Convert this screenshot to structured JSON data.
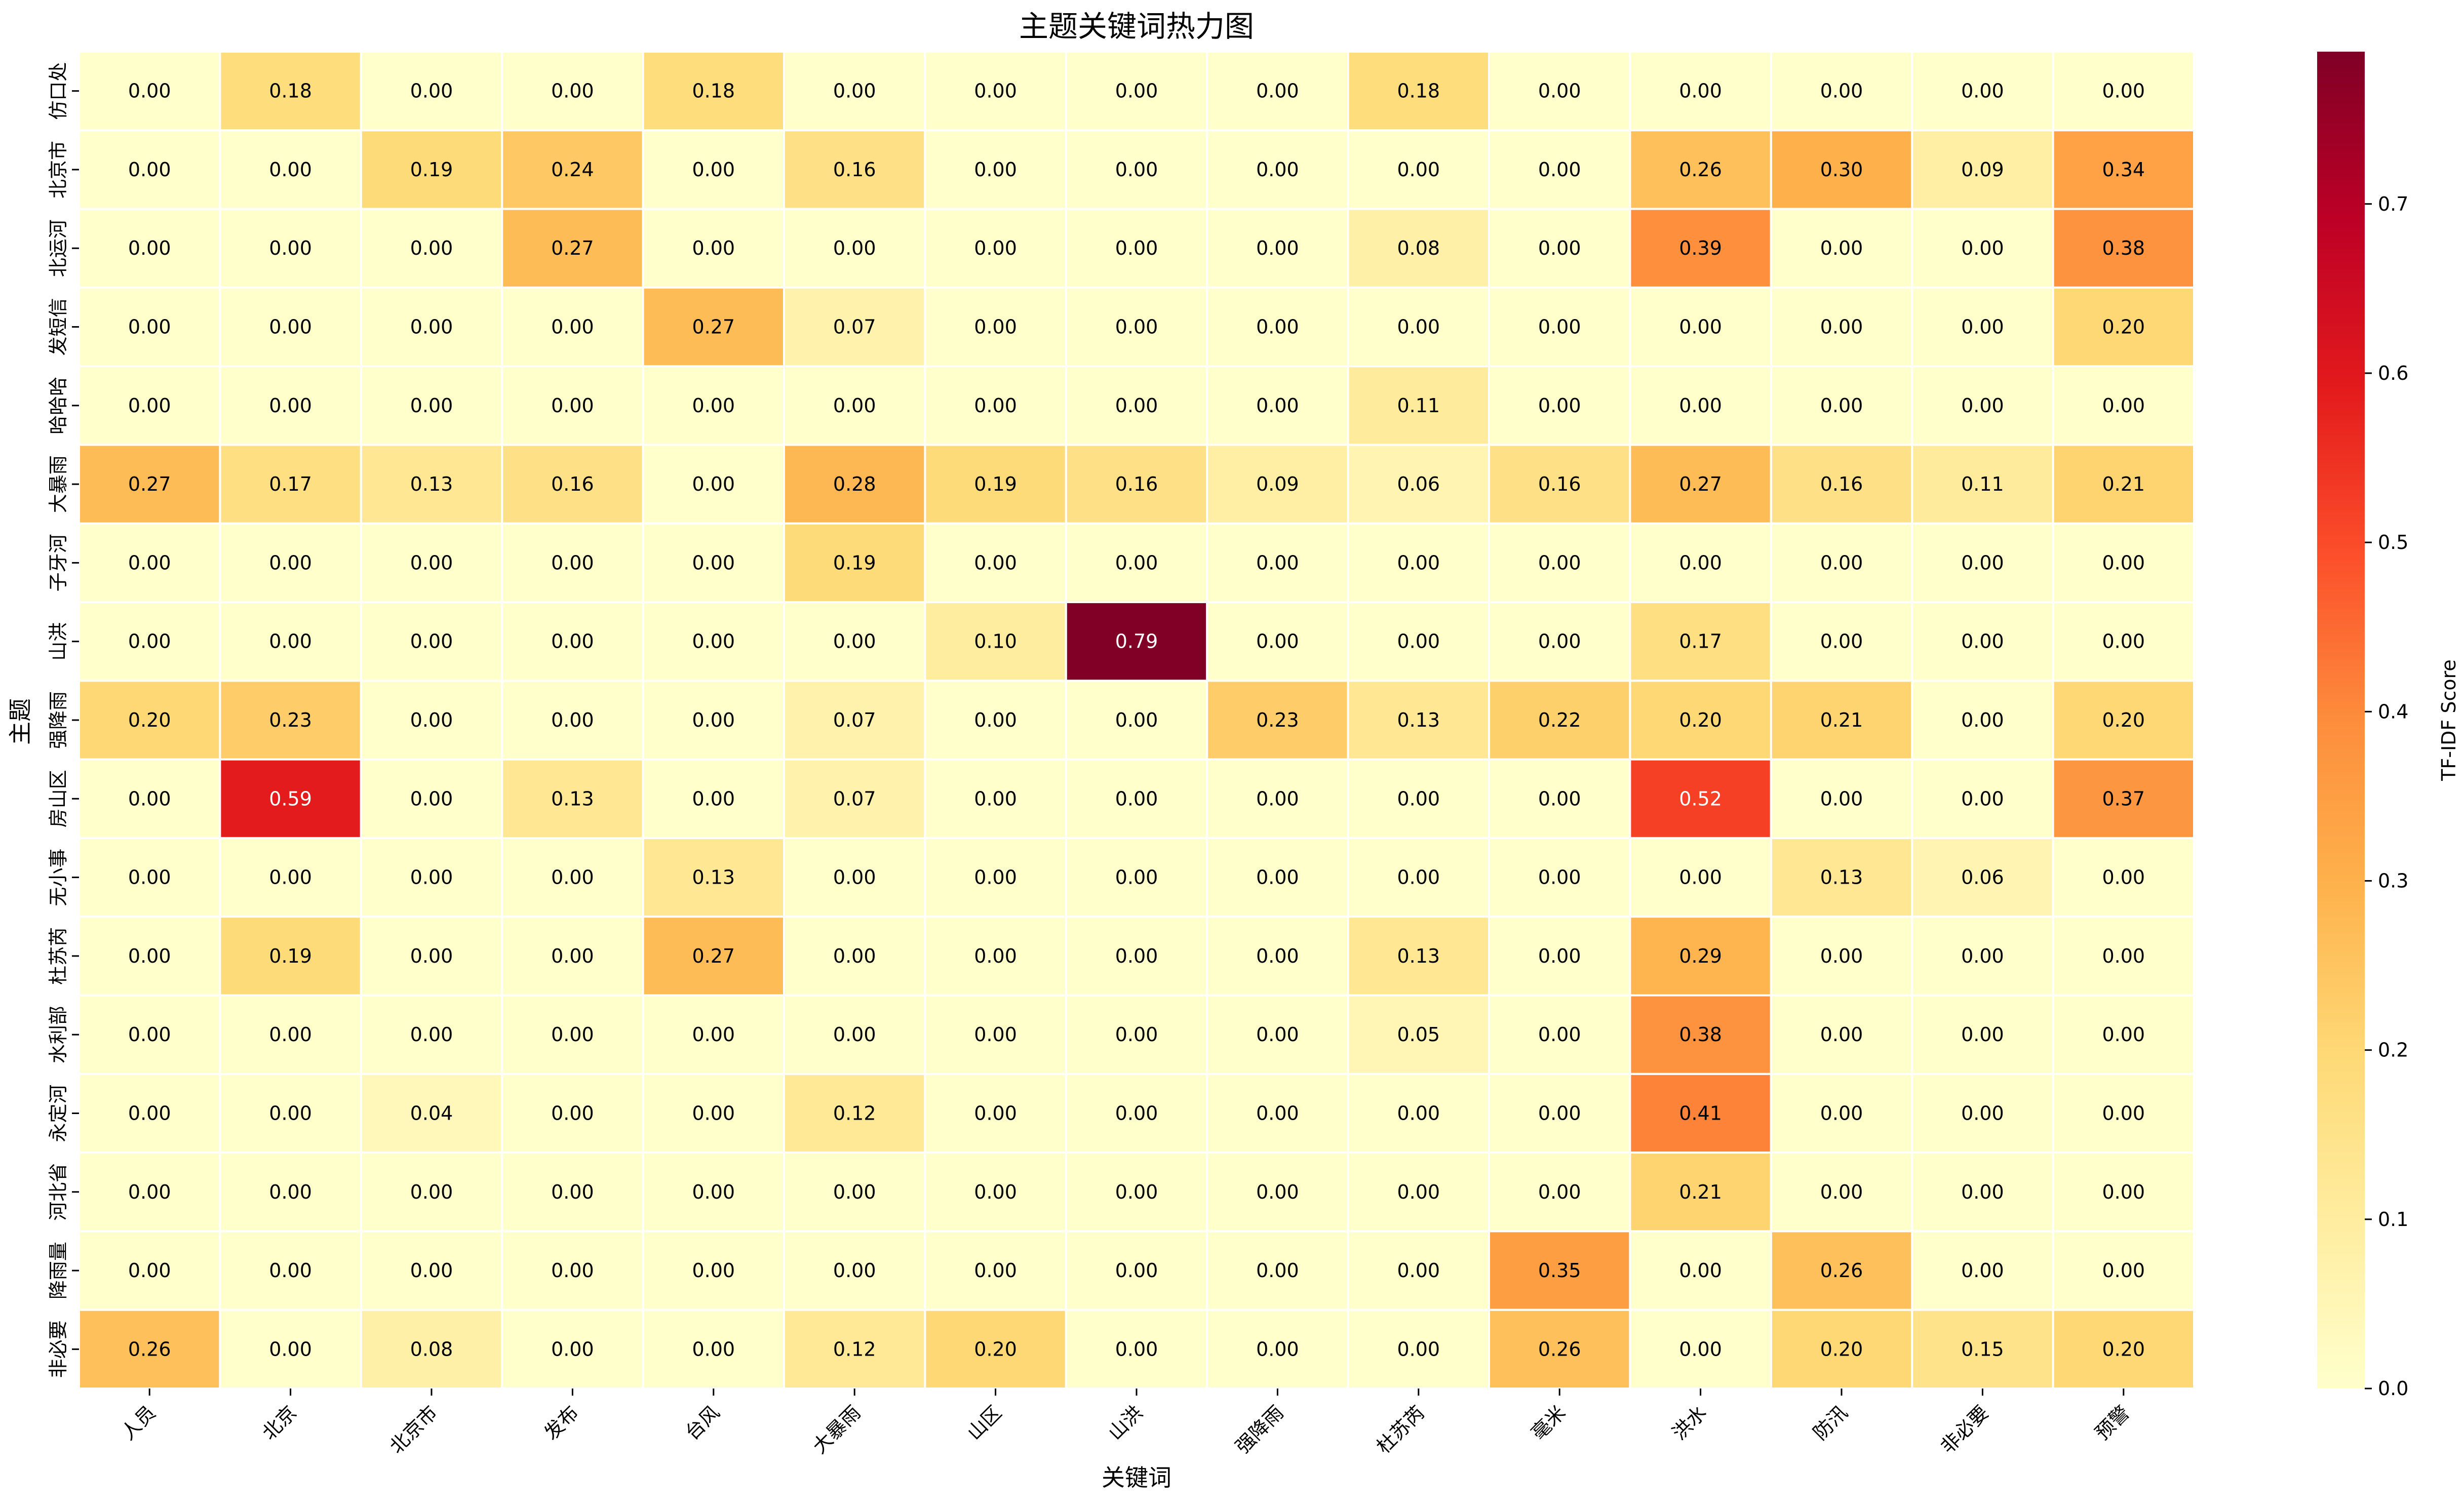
{
  "chart_data": {
    "type": "heatmap",
    "title": "主题关键词热力图",
    "xlabel": "关键词",
    "ylabel": "主题",
    "colorbar_label": "TF-IDF Score",
    "colorbar_ticks": [
      "0.0",
      "0.1",
      "0.2",
      "0.3",
      "0.4",
      "0.5",
      "0.6",
      "0.7"
    ],
    "colorbar_tick_values": [
      0,
      0.1,
      0.2,
      0.3,
      0.4,
      0.5,
      0.6,
      0.7
    ],
    "value_range": [
      0,
      0.79
    ],
    "colormap": "YlOrRd",
    "colormap_stops": [
      "#ffffcc",
      "#ffeda0",
      "#fed976",
      "#feb24c",
      "#fd8d3c",
      "#fc4e2a",
      "#e31a1c",
      "#bd0026",
      "#800026"
    ],
    "cell_text_light": "#ffffff",
    "cell_text_dark": "#000000",
    "grid_line_color": "#ffffff",
    "x_categories": [
      "人员",
      "北京",
      "北京市",
      "发布",
      "台风",
      "大暴雨",
      "山区",
      "山洪",
      "强降雨",
      "杜苏芮",
      "毫米",
      "洪水",
      "防汛",
      "非必要",
      "预警"
    ],
    "y_categories": [
      "仿口处",
      "北京市",
      "北运河",
      "发短信",
      "哈哈哈",
      "大暴雨",
      "子牙河",
      "山洪",
      "强降雨",
      "房山区",
      "无小事",
      "杜苏芮",
      "水利部",
      "永定河",
      "河北省",
      "降雨量",
      "非必要"
    ],
    "values": [
      [
        0.0,
        0.18,
        0.0,
        0.0,
        0.18,
        0.0,
        0.0,
        0.0,
        0.0,
        0.18,
        0.0,
        0.0,
        0.0,
        0.0,
        0.0
      ],
      [
        0.0,
        0.0,
        0.19,
        0.24,
        0.0,
        0.16,
        0.0,
        0.0,
        0.0,
        0.0,
        0.0,
        0.26,
        0.3,
        0.09,
        0.34
      ],
      [
        0.0,
        0.0,
        0.0,
        0.27,
        0.0,
        0.0,
        0.0,
        0.0,
        0.0,
        0.08,
        0.0,
        0.39,
        0.0,
        0.0,
        0.38
      ],
      [
        0.0,
        0.0,
        0.0,
        0.0,
        0.27,
        0.07,
        0.0,
        0.0,
        0.0,
        0.0,
        0.0,
        0.0,
        0.0,
        0.0,
        0.2
      ],
      [
        0.0,
        0.0,
        0.0,
        0.0,
        0.0,
        0.0,
        0.0,
        0.0,
        0.0,
        0.11,
        0.0,
        0.0,
        0.0,
        0.0,
        0.0
      ],
      [
        0.27,
        0.17,
        0.13,
        0.16,
        0.0,
        0.28,
        0.19,
        0.16,
        0.09,
        0.06,
        0.16,
        0.27,
        0.16,
        0.11,
        0.21
      ],
      [
        0.0,
        0.0,
        0.0,
        0.0,
        0.0,
        0.19,
        0.0,
        0.0,
        0.0,
        0.0,
        0.0,
        0.0,
        0.0,
        0.0,
        0.0
      ],
      [
        0.0,
        0.0,
        0.0,
        0.0,
        0.0,
        0.0,
        0.1,
        0.79,
        0.0,
        0.0,
        0.0,
        0.17,
        0.0,
        0.0,
        0.0
      ],
      [
        0.2,
        0.23,
        0.0,
        0.0,
        0.0,
        0.07,
        0.0,
        0.0,
        0.23,
        0.13,
        0.22,
        0.2,
        0.21,
        0.0,
        0.2
      ],
      [
        0.0,
        0.59,
        0.0,
        0.13,
        0.0,
        0.07,
        0.0,
        0.0,
        0.0,
        0.0,
        0.0,
        0.52,
        0.0,
        0.0,
        0.37
      ],
      [
        0.0,
        0.0,
        0.0,
        0.0,
        0.13,
        0.0,
        0.0,
        0.0,
        0.0,
        0.0,
        0.0,
        0.0,
        0.13,
        0.06,
        0.0
      ],
      [
        0.0,
        0.19,
        0.0,
        0.0,
        0.27,
        0.0,
        0.0,
        0.0,
        0.0,
        0.13,
        0.0,
        0.29,
        0.0,
        0.0,
        0.0
      ],
      [
        0.0,
        0.0,
        0.0,
        0.0,
        0.0,
        0.0,
        0.0,
        0.0,
        0.0,
        0.05,
        0.0,
        0.38,
        0.0,
        0.0,
        0.0
      ],
      [
        0.0,
        0.0,
        0.04,
        0.0,
        0.0,
        0.12,
        0.0,
        0.0,
        0.0,
        0.0,
        0.0,
        0.41,
        0.0,
        0.0,
        0.0
      ],
      [
        0.0,
        0.0,
        0.0,
        0.0,
        0.0,
        0.0,
        0.0,
        0.0,
        0.0,
        0.0,
        0.0,
        0.21,
        0.0,
        0.0,
        0.0
      ],
      [
        0.0,
        0.0,
        0.0,
        0.0,
        0.0,
        0.0,
        0.0,
        0.0,
        0.0,
        0.0,
        0.35,
        0.0,
        0.26,
        0.0,
        0.0
      ],
      [
        0.26,
        0.0,
        0.08,
        0.0,
        0.0,
        0.12,
        0.2,
        0.0,
        0.0,
        0.0,
        0.26,
        0.0,
        0.2,
        0.15,
        0.2
      ]
    ]
  }
}
